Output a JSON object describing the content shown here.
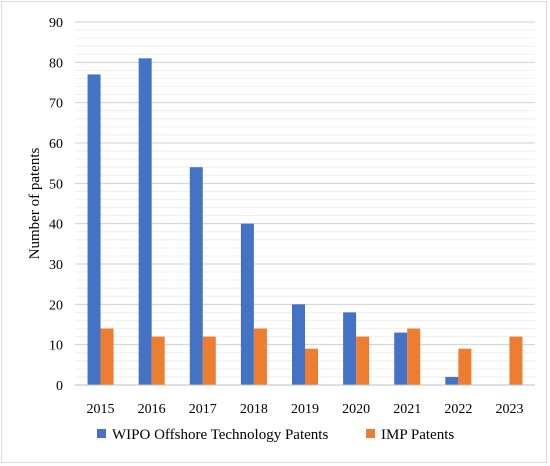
{
  "chart_data": {
    "type": "bar",
    "title": "",
    "xlabel": "",
    "ylabel": "Number of patents",
    "ylim": [
      0,
      90
    ],
    "yticks": [
      0,
      10,
      20,
      30,
      40,
      50,
      60,
      70,
      80,
      90
    ],
    "grid": true,
    "legend": "bottom",
    "categories": [
      "2015",
      "2016",
      "2017",
      "2018",
      "2019",
      "2020",
      "2021",
      "2022",
      "2023"
    ],
    "series": [
      {
        "name": "WIPO Offshore Technology Patents",
        "color": "#4472c4",
        "values": [
          77,
          81,
          54,
          40,
          20,
          18,
          13,
          2,
          0
        ]
      },
      {
        "name": "IMP Patents",
        "color": "#ed7d31",
        "values": [
          14,
          12,
          12,
          14,
          9,
          12,
          14,
          9,
          12
        ]
      }
    ]
  }
}
